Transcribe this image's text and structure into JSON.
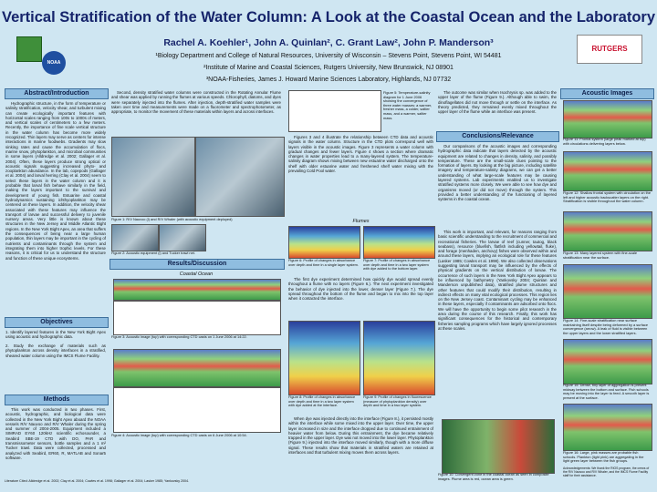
{
  "header": {
    "title": "Vertical Stratification of the Water Column: A Look at the Coastal Ocean and the Laboratory",
    "authors": "Rachel A. Koehler¹, John A. Quinlan², C. Grant Law², John P. Manderson³",
    "affiliations": [
      "¹Biology Department and College of Natural Resources, University of Wisconsin – Stevens Point, Stevens Point, WI 54481",
      "²Institute of Marine and Coastal Sciences, Rutgers University, New Brunswick, NJ 08901",
      "³NOAA-Fisheries, James J. Howard Marine Sciences Laboratory, Highlands, NJ 07732"
    ],
    "logo_left": "NOAA",
    "logo_right": "RUTGERS"
  },
  "abstract": {
    "heading": "Abstract/Introduction",
    "text": "Hydrographic structure, in the form of temperature or salinity stratification, velocity shear, and turbulent mixing can create ecologically important features with horizontal scales ranging from 100s to 1000s of meters, and vertical scales of centimeters to a few meters. Recently, the importance of fine scale vertical structure in the water column has become more widely recognized. Thin layers may serve as centers for intense interactions in marine foodwebs. Gradients may slow sinking rates and cause the accumulation of flocs, marine snow, phytoplankton, and microbial communities in some layers (Alldredge et al. 2002; Gallager et al. 2004). Often, these layers produce strong optical or acoustic signals suggesting increased phyto- and zooplankton abundance. In the lab, copepods (Gallager et al. 2004) and larval herring (Clay et al. 2004) seem to select these layers in the water column and it is probable that larval fish behave similarly in the field, making the layers important to the survival and development of young fish. Estuarine and coastal hydrodynamics sustaining ichthyoplankton may be centered on these layers. In addition, the velocity shear associated with these features may influence the transport of larvae and successful delivery to juvenile nursery areas. Very little is known about these structures in the New Jersey and Middle Atlantic Bight regions. In the New York Bight Apex, an area that suffers the consequences of being near a large human population, thin layers may be important in the cycling of nutrients and contaminants through the system and integrating them into higher trophic levels. For these reasons, it is critical for us to understand the structure and function of these unique ecosystems."
  },
  "objectives": {
    "heading": "Objectives",
    "items": [
      "1. Identify layered features in the New York Bight Apex using acoustic and hydrographic data.",
      "2. Study the exchange of materials such as phytoplankton across density interfaces in a stratified, sheared water column using the IMCS Flume Facility."
    ]
  },
  "methods": {
    "heading": "Methods",
    "text": "This work was conducted in two phases. First, acoustic, hydrographic, and biological data were collected in the New York Bight Apex aboard the NOAA vessels R/V Nauvoo and R/V Whaler during the spring and summer of 2004-2005. Equipment included a SIMRAD EY60 120kHz scientific echosounder, a Seabird SBE-19 CTD with DO, PAR and transmissometer sensors, bottle samples and a 1 m² Tucker trawl. Data were collected, processed and analyzed with Seabird, ER60, R, MATLAB and Sonar5 software."
  },
  "methods_cont": "Second, density stratified water columns were constructed in the Rotating Annular Flume and shear was applied by running the flumes at various speeds. Chlorophyll, diatoms, and dyes were separately injected into the flumes. After injection, depth-stratified water samples were taken over time and measurements were made on a fluorometer and spectrophotometer, as appropriate, to monitor the movement of these materials within layers and across interfaces.",
  "results": {
    "heading": "Results/Discussion",
    "subheading": "Coastal Ocean",
    "flumes": "Flumes",
    "text1": "Figures 3 and 4 illustrate the relationship between CTD data and acoustic signals in the water column. Structure in the CTD plots correspond well with layers visible in the acoustic images. Figure 3 represents a water column with gradual changes and fewer layers. Figure 4 shows a section where dramatic changes in water properties lead to a many-layered system. The temperature-salinity diagram shows mixing between new estuarine water discharged onto the shelf with older estuarine water and freshened shelf water mixing with the prevailing Cold Pool water.",
    "text2": "The first dye experiment determined how quickly dye would spread evenly throughout a flume with no layers (Figure 6.). The next experiment investigated the behavior of dye injected into the lower, denser layer (Figure 7.). The dye spread throughout the bottom of the flume and began to mix into the top layer when it contacted the interface.",
    "text3": "When dye was injected directly into the interface (Figure 8.), it persisted mostly within the interface while some mixed into the upper layer. Over time, the upper layer increased in size and the interface dropped due to continued entrainment of heavier water from below. During this entrainment, the dye became relatively trapped in the upper layer. Dye was not moved into the lower layer. Phytoplankton (Figure 9.) injected into the interface moved similarly, though with a more diffuse signal. These results show that materials in stratified waters are retained at interfaces and that turbulent mixing moves them across layers.",
    "text4": "The outcome was similar when Isochrysis sp. was added to the upper layer of the flume (Figure 9.). Although able to swim, the dinoflagellates did not move through or settle on the interface. As theory predicted, they remained evenly mixed throughout the upper layer of the flume while an interface was present."
  },
  "conclusions": {
    "heading": "Conclusions/Relevance",
    "paragraphs": [
      "Our comparisons of the acoustic images and corresponding hydrographic data indicate that layers detected by the acoustic equipment are related to changes in density, salinity, and possibly temperature. These are the small-scale clues pointing to the formation of layers. By looking at the big picture, including satellite imagery and temperature-salinity diagrams, we can get a better understanding of what large-scale features may be causing layered systems. Lab experiments enabled us to investigate stratified systems more closely. We were able to see how dye and organisms moved (or did not move) through the system. This provided a better understanding of the functioning of layered systems in the coastal ocean.",
      "This work is important, and relevant, for reasons ranging from basic scientific understanding to the recruitment of commercial and recreational fisheries. The larvae of reef (cunner, tautog, black seabass), resource (bluefish, flatfish including yellowtail, fluke), and forage (menhaden, anchovy) fishes were observed within and around these layers, implying an ecological role for these features (Lasker 1985; Cowles et al. 1998). We also collected observations suggesting larval transport may be influenced by the effects of physical gradients on the vertical distribution of larvae. The occurrence of such layers in the New York Bight Apex appears to be influenced by bathymetry (Yankovsky 2004; Quinlan and Manderson unpublished data), stratified plume structures and other features that could modify their distribution, resulting in indirect effects on many vital ecological processes. This region lies on the New Jersey coast. Contaminant cycling may be enhanced in these layers, especially if contaminants are adsorbed onto flocs. We will have the opportunity to begin some pilot research in the area during the course of this research. Finally, this work has significant consequences for the historical and contemporary fisheries sampling programs which have largely ignored processes at these scales."
    ]
  },
  "figures": {
    "fig1": "Figure 1: R/V Nauvoo (l) and R/V Whaler (with acoustic equipment deployed)",
    "fig2": "Figure 2: Acoustic equipment (l) and Tucker trawl net.",
    "fig3": "Figure 3: Acoustic image (top) with corresponding CTD casts on 1 June 2006 at 14:22.",
    "fig4": "Figure 4: Acoustic image (top) with corresponding CTD casts on 6 June 2006 at 10:54.",
    "fig5": "Figure 5: Temperature-salinity diagram for 1 June 2006 showing the convergence of three water masses: a warmer, fresher mass, a colder, saltier mass, and a warmer, saltier mass.",
    "fig6": "Figure 6: Profile of changes in absorbance over depth and time in a single layer system.",
    "fig7": "Figure 7: Profile of changes in absorbance over depth and time in a two layer system with dye added to the bottom layer.",
    "fig8": "Figure 8: Profile of changes in absorbance over depth and time in a two layer system with dye added at the interface.",
    "fig9": "Figure 9: Profile of changes in fluorescence (measure of phytoplankton density) over depth and time in a two layer system.",
    "fig10": "Figure 10: Convergent zone in the coastal ocean as seen in composite images. Plume area is red, ocean area is green."
  },
  "acoustic": {
    "heading": "Acoustic Images",
    "captions": [
      "Figure 11: Frontal system (large peak marked at top) with circulations delivering layers below.",
      "Figure 12: Shallow frontal system with circulation on the left and higher acoustic backscatter layers on the right. Stratification is visible throughout the water column.",
      "Figure 13: Many layered system with fine-scale stratification near the surface.",
      "Figure 14: Fine-scale stratification near surface maintaining itself despite being deformed by a surface convergence (arrow). A leak of fluid is visible between the upper layers and the lower stratified layers.",
      "Figure 15: Dense, tiny layer of aggregation is present midway between the bottom and surface. Fish schools may be moving into the layer to feed. A smooth layer is present at the surface.",
      "Figure 16: Large, pink masses are probable fish schools. Plankton (light pink) are aggregating in the light green layer between the fish groups."
    ]
  },
  "acknowledgements": "Acknowledgements: We thank the RIOS program, the crews of the R/V Nauvoo and R/V Whaler, and the IMCS Flume Facility staff for their assistance.",
  "literature": "Literature Cited: Alldredge et al. 2002; Clay et al. 2004; Cowles et al. 1998; Gallager et al. 2004; Lasker 1985; Yankovsky 2004."
}
